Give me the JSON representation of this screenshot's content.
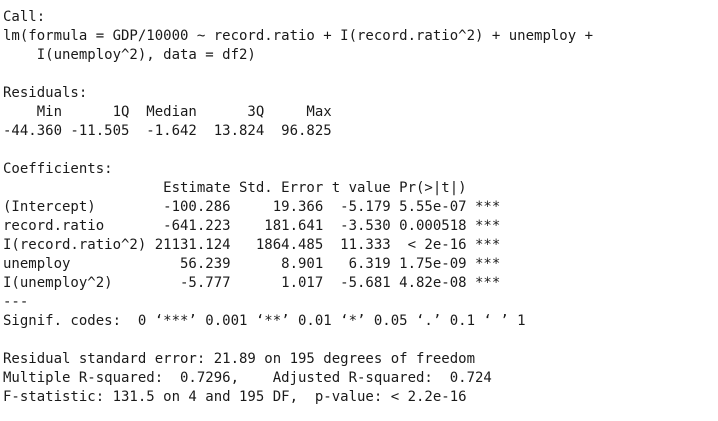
{
  "console": {
    "lines": [
      "Call:",
      "lm(formula = GDP/10000 ~ record.ratio + I(record.ratio^2) + unemploy +",
      "    I(unemploy^2), data = df2)",
      "",
      "Residuals:",
      "    Min      1Q  Median      3Q     Max ",
      "-44.360 -11.505  -1.642  13.824  96.825 ",
      "",
      "Coefficients:",
      "                   Estimate Std. Error t value Pr(>|t|)    ",
      "(Intercept)        -100.286     19.366  -5.179 5.55e-07 ***",
      "record.ratio       -641.223    181.641  -3.530 0.000518 ***",
      "I(record.ratio^2) 21131.124   1864.485  11.333  < 2e-16 ***",
      "unemploy             56.239      8.901   6.319 1.75e-09 ***",
      "I(unemploy^2)        -5.777      1.017  -5.681 4.82e-08 ***",
      "---",
      "Signif. codes:  0 ‘***’ 0.001 ‘**’ 0.01 ‘*’ 0.05 ‘.’ 0.1 ‘ ’ 1",
      "",
      "Residual standard error: 21.89 on 195 degrees of freedom",
      "Multiple R-squared:  0.7296,\tAdjusted R-squared:  0.724 ",
      "F-statistic: 131.5 on 4 and 195 DF,  p-value: < 2.2e-16"
    ]
  }
}
